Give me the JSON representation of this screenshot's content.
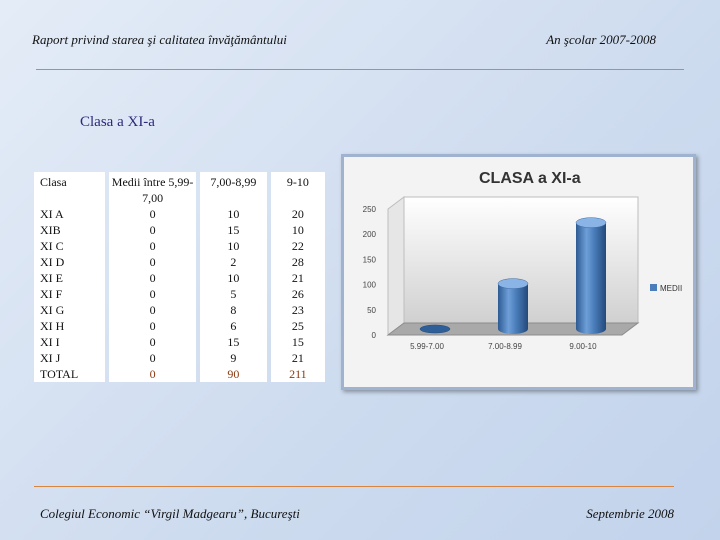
{
  "header": {
    "left": "Raport privind starea şi calitatea învăţământului",
    "right": "An şcolar 2007-2008"
  },
  "section_title": "Clasa a XI-a",
  "table": {
    "headers": [
      "Clasa",
      "Medii între 5,99-7,00",
      "7,00-8,99",
      "9-10"
    ],
    "rows": [
      [
        "XI A",
        "0",
        "10",
        "20"
      ],
      [
        "XIB",
        "0",
        "15",
        "10"
      ],
      [
        "XI C",
        "0",
        "10",
        "22"
      ],
      [
        "XI D",
        "0",
        "2",
        "28"
      ],
      [
        "XI E",
        "0",
        "10",
        "21"
      ],
      [
        "XI F",
        "0",
        "5",
        "26"
      ],
      [
        "XI G",
        "0",
        "8",
        "23"
      ],
      [
        "XI H",
        "0",
        "6",
        "25"
      ],
      [
        "XI I",
        "0",
        "15",
        "15"
      ],
      [
        "XI J",
        "0",
        "9",
        "21"
      ]
    ],
    "total": [
      "TOTAL",
      "0",
      "90",
      "211"
    ]
  },
  "chart_data": {
    "type": "bar",
    "title": "CLASA a XI-a",
    "categories": [
      "5.99-7.00",
      "7.00-8.99",
      "9.00-10"
    ],
    "series": [
      {
        "name": "MEDII",
        "values": [
          0,
          90,
          211
        ]
      }
    ],
    "ylim": [
      0,
      250
    ],
    "yticks": [
      "0",
      "50",
      "100",
      "150",
      "200",
      "250"
    ],
    "legend_position": "right",
    "bar_color": "#4a7ebb",
    "grid": false
  },
  "footer": {
    "left": "Colegiul Economic “Virgil Madgearu”, Bucureşti",
    "right": "Septembrie 2008"
  }
}
